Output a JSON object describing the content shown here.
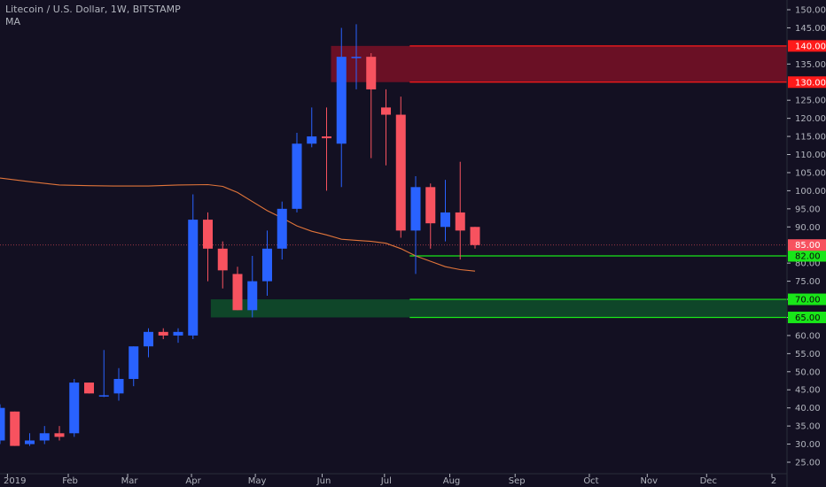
{
  "header": {
    "symbol": "Litecoin / U.S. Dollar, 1W, BITSTAMP",
    "indicator": "MA"
  },
  "colors": {
    "background": "#131022",
    "up": "#2962ff",
    "down": "#f7525f",
    "ma": "#e0743a",
    "resistance": "#ff1a1a",
    "support": "#19e619",
    "axis_text": "#b2b5be"
  },
  "chart_data": {
    "type": "candlestick",
    "title": "Litecoin / U.S. Dollar, 1W, BITSTAMP",
    "xlabel": "",
    "ylabel": "",
    "ylim": [
      22,
      152
    ],
    "y_ticks": [
      25,
      30,
      35,
      40,
      45,
      50,
      55,
      60,
      65,
      70,
      75,
      80,
      90,
      95,
      100,
      105,
      110,
      115,
      120,
      125,
      135,
      145,
      150
    ],
    "y_tick_labels": [
      "25.00",
      "30.00",
      "35.00",
      "40.00",
      "45.00",
      "50.00",
      "55.00",
      "60.00",
      "65.00",
      "70.00",
      "75.00",
      "80.00",
      "90.00",
      "95.00",
      "100.00",
      "105.00",
      "110.00",
      "115.00",
      "120.00",
      "125.00",
      "135.00",
      "145.00",
      "150.00"
    ],
    "x_tick_labels": [
      {
        "label": "2019",
        "week": 0.5
      },
      {
        "label": "Feb",
        "week": 4.6
      },
      {
        "label": "Mar",
        "week": 8.6
      },
      {
        "label": "Apr",
        "week": 12.9
      },
      {
        "label": "May",
        "week": 17.2
      },
      {
        "label": "Jun",
        "week": 21.7
      },
      {
        "label": "Jul",
        "week": 25.9
      },
      {
        "label": "Aug",
        "week": 30.3
      },
      {
        "label": "Sep",
        "week": 34.7
      },
      {
        "label": "Oct",
        "week": 39.7
      },
      {
        "label": "Nov",
        "week": 43.6
      },
      {
        "label": "Dec",
        "week": 47.6
      },
      {
        "label": "2",
        "week": 52.0
      }
    ],
    "candles": [
      {
        "open": 31,
        "high": 41,
        "low": 30,
        "close": 40
      },
      {
        "open": 39,
        "high": 39,
        "low": 29.5,
        "close": 29.5
      },
      {
        "open": 30,
        "high": 33,
        "low": 29.5,
        "close": 31
      },
      {
        "open": 31,
        "high": 35,
        "low": 30,
        "close": 33
      },
      {
        "open": 33,
        "high": 35,
        "low": 31,
        "close": 32
      },
      {
        "open": 33,
        "high": 48,
        "low": 32,
        "close": 47
      },
      {
        "open": 47,
        "high": 47,
        "low": 44,
        "close": 44
      },
      {
        "open": 43.5,
        "high": 56,
        "low": 43,
        "close": 43.5
      },
      {
        "open": 44,
        "high": 51,
        "low": 42,
        "close": 48
      },
      {
        "open": 48,
        "high": 57,
        "low": 46,
        "close": 57
      },
      {
        "open": 57,
        "high": 62,
        "low": 54,
        "close": 61
      },
      {
        "open": 61,
        "high": 62,
        "low": 59,
        "close": 60
      },
      {
        "open": 60,
        "high": 62,
        "low": 58,
        "close": 61
      },
      {
        "open": 60,
        "high": 99,
        "low": 59,
        "close": 92
      },
      {
        "open": 92,
        "high": 94,
        "low": 75,
        "close": 84
      },
      {
        "open": 84,
        "high": 86,
        "low": 73,
        "close": 78
      },
      {
        "open": 77,
        "high": 79,
        "low": 67,
        "close": 67
      },
      {
        "open": 67,
        "high": 82,
        "low": 65,
        "close": 75
      },
      {
        "open": 75,
        "high": 89,
        "low": 71,
        "close": 84
      },
      {
        "open": 84,
        "high": 97,
        "low": 81,
        "close": 95
      },
      {
        "open": 95,
        "high": 116,
        "low": 94,
        "close": 113
      },
      {
        "open": 113,
        "high": 123,
        "low": 112,
        "close": 115
      },
      {
        "open": 115,
        "high": 123,
        "low": 100,
        "close": 114.5
      },
      {
        "open": 113,
        "high": 145,
        "low": 101,
        "close": 137
      },
      {
        "open": 137,
        "high": 146,
        "low": 128,
        "close": 137
      },
      {
        "open": 137,
        "high": 138,
        "low": 109,
        "close": 128
      },
      {
        "open": 123,
        "high": 128,
        "low": 107,
        "close": 121
      },
      {
        "open": 121,
        "high": 126,
        "low": 87,
        "close": 89
      },
      {
        "open": 89,
        "high": 104,
        "low": 77,
        "close": 101
      },
      {
        "open": 101,
        "high": 102,
        "low": 84,
        "close": 91
      },
      {
        "open": 90,
        "high": 103,
        "low": 86,
        "close": 94
      },
      {
        "open": 94,
        "high": 108,
        "low": 81,
        "close": 89
      },
      {
        "open": 90,
        "high": 90,
        "low": 84,
        "close": 85
      }
    ],
    "moving_average": [
      {
        "week": 0,
        "value": 103.5
      },
      {
        "week": 2,
        "value": 102.5
      },
      {
        "week": 4,
        "value": 101.6
      },
      {
        "week": 6,
        "value": 101.4
      },
      {
        "week": 8,
        "value": 101.3
      },
      {
        "week": 10,
        "value": 101.3
      },
      {
        "week": 12,
        "value": 101.6
      },
      {
        "week": 14,
        "value": 101.7
      },
      {
        "week": 15,
        "value": 101.2
      },
      {
        "week": 16,
        "value": 99.5
      },
      {
        "week": 17,
        "value": 97
      },
      {
        "week": 18,
        "value": 94.5
      },
      {
        "week": 19,
        "value": 92.5
      },
      {
        "week": 20,
        "value": 90.3
      },
      {
        "week": 21,
        "value": 88.8
      },
      {
        "week": 22,
        "value": 87.8
      },
      {
        "week": 23,
        "value": 86.6
      },
      {
        "week": 24,
        "value": 86.3
      },
      {
        "week": 25,
        "value": 86
      },
      {
        "week": 26,
        "value": 85.5
      },
      {
        "week": 27,
        "value": 84
      },
      {
        "week": 28,
        "value": 82
      },
      {
        "week": 29,
        "value": 80.5
      },
      {
        "week": 30,
        "value": 79
      },
      {
        "week": 31,
        "value": 78.2
      },
      {
        "week": 32,
        "value": 77.8
      }
    ],
    "zones": [
      {
        "name": "resistance",
        "low": 130,
        "high": 140,
        "from_week": 22.3,
        "to_week": 27.6,
        "color": "#7a1126"
      },
      {
        "name": "support",
        "low": 65,
        "high": 70,
        "from_week": 14.2,
        "to_week": 27.6,
        "color": "#0f4a2a"
      }
    ],
    "levels": [
      {
        "value": 140,
        "label": "140.00",
        "color": "#ff1a1a"
      },
      {
        "value": 130,
        "label": "130.00",
        "color": "#ff1a1a"
      },
      {
        "value": 82,
        "label": "82.00",
        "color": "#19e619"
      },
      {
        "value": 70,
        "label": "70.00",
        "color": "#19e619"
      },
      {
        "value": 65,
        "label": "65.00",
        "color": "#19e619"
      }
    ],
    "current_price": {
      "value": 85,
      "label": "85.00",
      "color": "#f7525f"
    }
  }
}
